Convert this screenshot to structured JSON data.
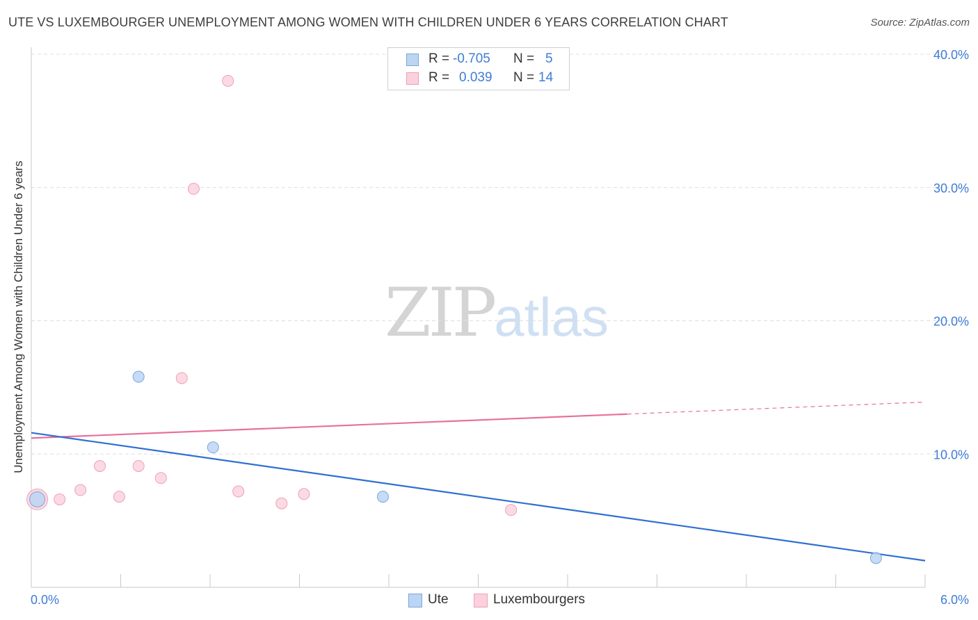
{
  "header": {
    "title": "UTE VS LUXEMBOURGER UNEMPLOYMENT AMONG WOMEN WITH CHILDREN UNDER 6 YEARS CORRELATION CHART",
    "source": "Source: ZipAtlas.com"
  },
  "watermark": {
    "zip": "ZIP",
    "atlas": "atlas"
  },
  "stats": {
    "ute": {
      "r_label": "R =",
      "r_value": "-0.705",
      "n_label": "N =",
      "n_value": "5",
      "color": "#a8c8f0"
    },
    "lux": {
      "r_label": "R =",
      "r_value": "0.039",
      "n_label": "N =",
      "n_value": "14",
      "color": "#f7b8c8"
    }
  },
  "legend": {
    "ute": "Ute",
    "lux": "Luxembourgers"
  },
  "colors": {
    "ute_fill": "#bcd5f3",
    "ute_stroke": "#7aa6dc",
    "ute_line": "#2f6fd0",
    "lux_fill": "#fad1dd",
    "lux_stroke": "#efa0b8",
    "lux_line": "#e8709a",
    "tick_text": "#3d7cd6",
    "grid": "#dddddd"
  },
  "chart_data": {
    "type": "scatter",
    "title": "UTE VS LUXEMBOURGER UNEMPLOYMENT AMONG WOMEN WITH CHILDREN UNDER 6 YEARS CORRELATION CHART",
    "xlabel": "",
    "ylabel": "Unemployment Among Women with Children Under 6 years",
    "xlim": [
      0,
      6
    ],
    "ylim": [
      0,
      40
    ],
    "x_tick_labels": [
      "0.0%",
      "6.0%"
    ],
    "y_ticks": [
      10,
      20,
      30,
      40
    ],
    "y_tick_labels": [
      "10.0%",
      "20.0%",
      "30.0%",
      "40.0%"
    ],
    "grid": true,
    "legend_position": "bottom-center",
    "series": [
      {
        "name": "Ute",
        "points": [
          {
            "x": 0.04,
            "y": 6.6
          },
          {
            "x": 0.72,
            "y": 15.8
          },
          {
            "x": 1.22,
            "y": 10.5
          },
          {
            "x": 2.36,
            "y": 6.8
          },
          {
            "x": 5.67,
            "y": 2.2
          }
        ],
        "trend": {
          "x0": 0.0,
          "y0": 11.6,
          "x1": 6.0,
          "y1": 2.0
        }
      },
      {
        "name": "Luxembourgers",
        "points": [
          {
            "x": 0.04,
            "y": 6.6
          },
          {
            "x": 0.19,
            "y": 6.6
          },
          {
            "x": 0.33,
            "y": 7.3
          },
          {
            "x": 0.46,
            "y": 9.1
          },
          {
            "x": 0.59,
            "y": 6.8
          },
          {
            "x": 0.72,
            "y": 9.1
          },
          {
            "x": 0.87,
            "y": 8.2
          },
          {
            "x": 1.01,
            "y": 15.7
          },
          {
            "x": 1.09,
            "y": 29.9
          },
          {
            "x": 1.39,
            "y": 7.2
          },
          {
            "x": 1.32,
            "y": 38.0
          },
          {
            "x": 1.68,
            "y": 6.3
          },
          {
            "x": 1.83,
            "y": 7.0
          },
          {
            "x": 3.22,
            "y": 5.8
          }
        ],
        "trend": {
          "x0": 0.0,
          "y0": 11.2,
          "x1": 6.0,
          "y1": 13.9,
          "solid_until_x": 4.0
        }
      }
    ]
  }
}
